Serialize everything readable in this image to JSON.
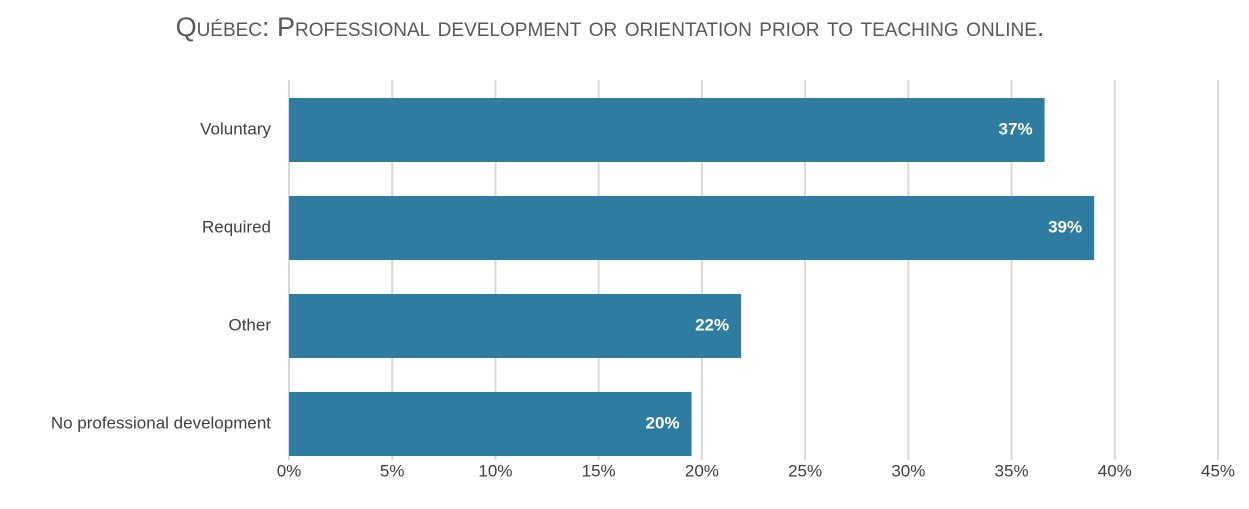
{
  "chart_data": {
    "type": "bar",
    "orientation": "horizontal",
    "title": "Québec: Professional development or orientation prior to teaching online.",
    "categories": [
      "Voluntary",
      "Required",
      "Other",
      "No professional development"
    ],
    "values": [
      36.6,
      39.0,
      21.9,
      19.5
    ],
    "value_labels": [
      "37%",
      "39%",
      "22%",
      "20%"
    ],
    "color": "#2e7ca0",
    "xlim": [
      0,
      45
    ],
    "xticks": [
      {
        "value": 0,
        "label": "0%"
      },
      {
        "value": 5,
        "label": "5%"
      },
      {
        "value": 10,
        "label": "10%"
      },
      {
        "value": 15,
        "label": "15%"
      },
      {
        "value": 20,
        "label": "20%"
      },
      {
        "value": 25,
        "label": "25%"
      },
      {
        "value": 30,
        "label": "30%"
      },
      {
        "value": 35,
        "label": "35%"
      },
      {
        "value": 40,
        "label": "40%"
      },
      {
        "value": 45,
        "label": "45%"
      }
    ],
    "grid": true
  }
}
